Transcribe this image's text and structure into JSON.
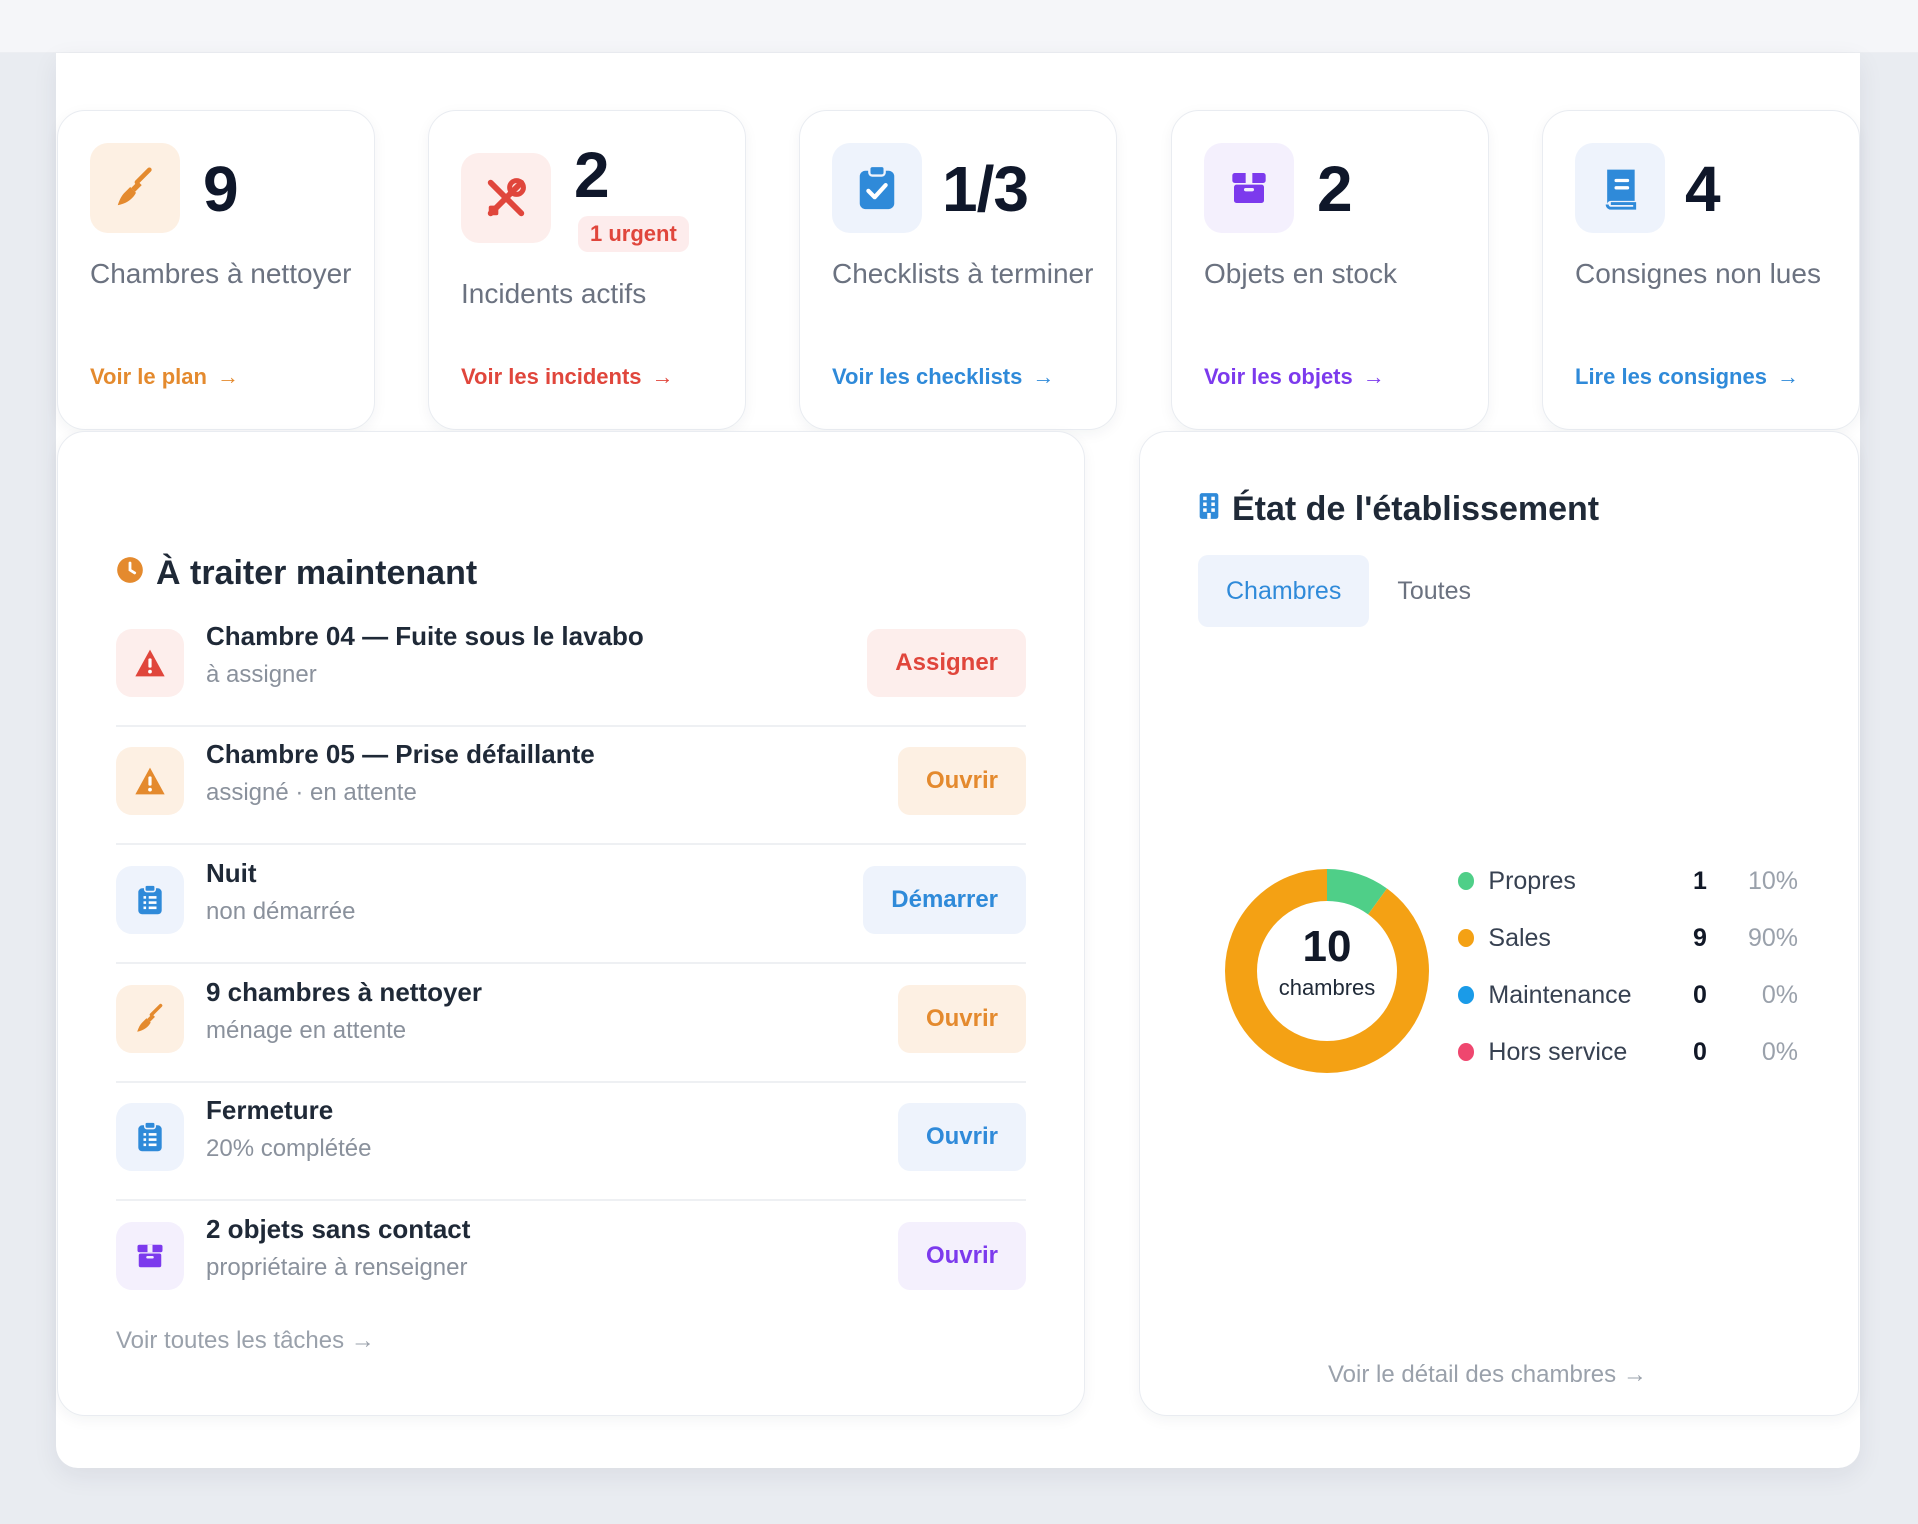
{
  "colors": {
    "orange": "#e48a2e",
    "red": "#e0463c",
    "blue": "#2f8ad9",
    "purple": "#7c3aed",
    "green": "#4fcf88",
    "sales": "#f4a114",
    "maintenance": "#1a9be8",
    "hors_service": "#ef476f"
  },
  "stats": [
    {
      "icon": "broom-icon",
      "value": "9",
      "label": "Chambres à nettoyer",
      "link": "Voir le plan"
    },
    {
      "icon": "tools-icon",
      "value": "2",
      "badge": "1 urgent",
      "label": "Incidents actifs",
      "link": "Voir les incidents"
    },
    {
      "icon": "clipboard-check-icon",
      "value": "1/3",
      "label": "Checklists à terminer",
      "link": "Voir les checklists"
    },
    {
      "icon": "box-icon",
      "value": "2",
      "label": "Objets en stock",
      "link": "Voir les objets"
    },
    {
      "icon": "book-icon",
      "value": "4",
      "label": "Consignes non lues",
      "link": "Lire les consignes"
    }
  ],
  "tasks_section": {
    "title": "À traiter maintenant",
    "footer_link": "Voir toutes les tâches →",
    "items": [
      {
        "icon": "alert-triangle-icon",
        "title": "Chambre 04 — Fuite sous le lavabo",
        "subtitle": "à assigner",
        "action": "Assigner"
      },
      {
        "icon": "alert-triangle-icon",
        "title": "Chambre 05 — Prise défaillante",
        "subtitle": "assigné · en attente",
        "action": "Ouvrir"
      },
      {
        "icon": "clipboard-list-icon",
        "title": "Nuit",
        "subtitle": "non démarrée",
        "action": "Démarrer"
      },
      {
        "icon": "broom-icon",
        "title": "9 chambres à nettoyer",
        "subtitle": "ménage en attente",
        "action": "Ouvrir"
      },
      {
        "icon": "clipboard-list-icon",
        "title": "Fermeture",
        "subtitle": "20% complétée",
        "action": "Ouvrir"
      },
      {
        "icon": "box-icon",
        "title": "2 objets sans contact",
        "subtitle": "propriétaire à renseigner",
        "action": "Ouvrir"
      }
    ]
  },
  "status_section": {
    "title": "État de l'établissement",
    "tabs": [
      "Chambres",
      "Toutes"
    ],
    "active_tab": "Chambres",
    "donut_total": "10",
    "donut_caption": "chambres",
    "footer_link": "Voir le détail des chambres →",
    "legend": [
      {
        "name": "Propres",
        "count": "1",
        "pct": "10%"
      },
      {
        "name": "Sales",
        "count": "9",
        "pct": "90%"
      },
      {
        "name": "Maintenance",
        "count": "0",
        "pct": "0%"
      },
      {
        "name": "Hors service",
        "count": "0",
        "pct": "0%"
      }
    ]
  },
  "chart_data": {
    "type": "pie",
    "categories": [
      "Propres",
      "Sales",
      "Maintenance",
      "Hors service"
    ],
    "values": [
      1,
      9,
      0,
      0
    ],
    "title": "",
    "center_label": "10 chambres"
  }
}
